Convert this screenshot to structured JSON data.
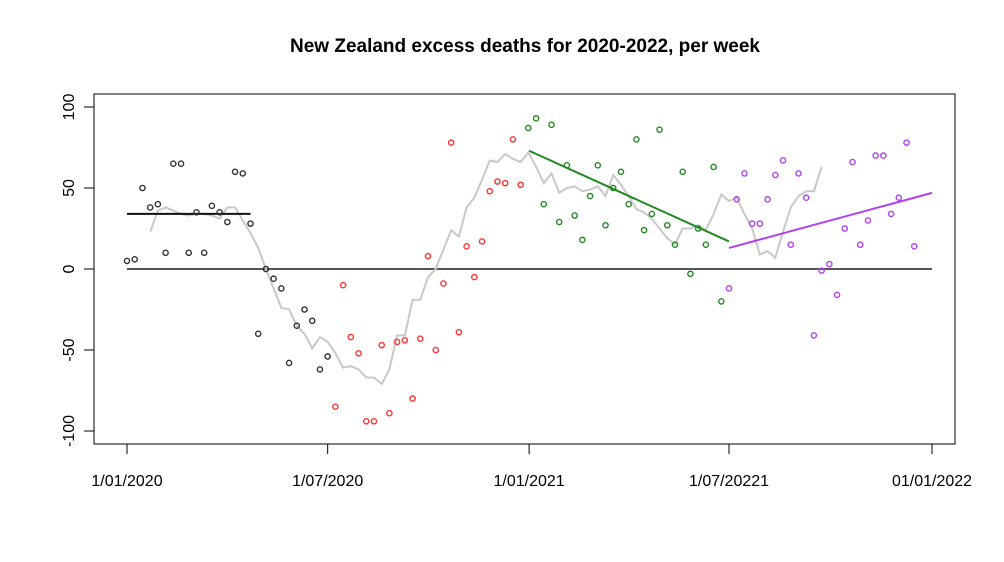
{
  "chart_data": {
    "type": "scatter",
    "title": "New Zealand excess deaths for 2020-2022, per week",
    "xlabel": "",
    "ylabel": "",
    "ylim": [
      -100,
      100
    ],
    "xlim_weeks": [
      0,
      104.3
    ],
    "grid": false,
    "x_ticks": [
      {
        "week": 0,
        "label": "1/01/2020"
      },
      {
        "week": 26,
        "label": "1/07/2020"
      },
      {
        "week": 52.1,
        "label": "1/01/2021"
      },
      {
        "week": 78,
        "label": "1/07/20221"
      },
      {
        "week": 104.3,
        "label": "01/01/2022"
      }
    ],
    "y_ticks": [
      100,
      50,
      0,
      -50,
      -100
    ],
    "zero_line": {
      "y": 0,
      "color": "#555555"
    },
    "series": [
      {
        "name": "period-1",
        "color": "#333333",
        "points": [
          [
            0,
            5
          ],
          [
            1,
            6
          ],
          [
            2,
            50
          ],
          [
            3,
            38
          ],
          [
            4,
            40
          ],
          [
            5,
            10
          ],
          [
            6,
            65
          ],
          [
            7,
            65
          ],
          [
            8,
            10
          ],
          [
            9,
            35
          ],
          [
            10,
            10
          ],
          [
            11,
            39
          ],
          [
            12,
            35
          ],
          [
            13,
            29
          ],
          [
            14,
            60
          ],
          [
            15,
            59
          ],
          [
            16,
            28
          ],
          [
            17,
            -40
          ],
          [
            18,
            0
          ],
          [
            19,
            -6
          ],
          [
            20,
            -12
          ],
          [
            21,
            -58
          ],
          [
            22,
            -35
          ],
          [
            23,
            -25
          ],
          [
            24,
            -32
          ],
          [
            25,
            -62
          ],
          [
            26,
            -54
          ]
        ],
        "trend": {
          "from_week": 0,
          "to_week": 16,
          "y_start": 34,
          "y_end": 34
        }
      },
      {
        "name": "period-2",
        "color": "#ff3333",
        "points": [
          [
            27,
            -85
          ],
          [
            28,
            -10
          ],
          [
            29,
            -42
          ],
          [
            30,
            -52
          ],
          [
            31,
            -94
          ],
          [
            32,
            -94
          ],
          [
            33,
            -47
          ],
          [
            34,
            -89
          ],
          [
            35,
            -45
          ],
          [
            36,
            -44
          ],
          [
            37,
            -80
          ],
          [
            38,
            -43
          ],
          [
            39,
            8
          ],
          [
            40,
            -50
          ],
          [
            41,
            -9
          ],
          [
            42,
            78
          ],
          [
            43,
            -39
          ],
          [
            44,
            14
          ],
          [
            45,
            -5
          ],
          [
            46,
            17
          ],
          [
            47,
            48
          ],
          [
            48,
            54
          ],
          [
            49,
            53
          ],
          [
            50,
            80
          ],
          [
            51,
            52
          ]
        ]
      },
      {
        "name": "period-3",
        "color": "#228822",
        "points": [
          [
            52,
            87
          ],
          [
            53,
            93
          ],
          [
            54,
            40
          ],
          [
            55,
            89
          ],
          [
            56,
            29
          ],
          [
            57,
            64
          ],
          [
            58,
            33
          ],
          [
            59,
            18
          ],
          [
            60,
            45
          ],
          [
            61,
            64
          ],
          [
            62,
            27
          ],
          [
            63,
            50
          ],
          [
            64,
            60
          ],
          [
            65,
            40
          ],
          [
            66,
            80
          ],
          [
            67,
            24
          ],
          [
            68,
            34
          ],
          [
            69,
            86
          ],
          [
            70,
            27
          ],
          [
            71,
            15
          ],
          [
            72,
            60
          ],
          [
            73,
            -3
          ],
          [
            74,
            25
          ],
          [
            75,
            15
          ],
          [
            76,
            63
          ],
          [
            77,
            -20
          ]
        ],
        "trend": {
          "from_week": 52.1,
          "to_week": 78,
          "y_start": 73,
          "y_end": 17
        }
      },
      {
        "name": "period-4",
        "color": "#b040f0",
        "points": [
          [
            78,
            -12
          ],
          [
            79,
            43
          ],
          [
            80,
            59
          ],
          [
            81,
            28
          ],
          [
            82,
            28
          ],
          [
            83,
            43
          ],
          [
            84,
            58
          ],
          [
            85,
            67
          ],
          [
            86,
            15
          ],
          [
            87,
            59
          ],
          [
            88,
            44
          ],
          [
            89,
            -41
          ],
          [
            90,
            -1
          ],
          [
            91,
            3
          ],
          [
            92,
            -16
          ],
          [
            93,
            25
          ],
          [
            94,
            66
          ],
          [
            95,
            15
          ],
          [
            96,
            30
          ],
          [
            97,
            70
          ],
          [
            98,
            70
          ],
          [
            99,
            34
          ],
          [
            100,
            44
          ],
          [
            101,
            78
          ],
          [
            102,
            14
          ]
        ],
        "trend": {
          "from_week": 78,
          "to_week": 104.3,
          "y_start": 13,
          "y_end": 47
        }
      }
    ],
    "smoothed": {
      "name": "rolling-average",
      "color": "#c8c8c8",
      "points": [
        [
          3,
          23
        ],
        [
          4,
          36
        ],
        [
          5,
          38
        ],
        [
          6,
          36
        ],
        [
          7,
          34
        ],
        [
          8,
          33
        ],
        [
          9,
          34
        ],
        [
          10,
          34
        ],
        [
          11,
          33
        ],
        [
          12,
          31
        ],
        [
          13,
          38
        ],
        [
          14,
          38
        ],
        [
          15,
          30
        ],
        [
          16,
          22
        ],
        [
          17,
          13
        ],
        [
          18,
          0
        ],
        [
          19,
          -12
        ],
        [
          20,
          -24
        ],
        [
          21,
          -25
        ],
        [
          22,
          -35
        ],
        [
          23,
          -40
        ],
        [
          24,
          -49
        ],
        [
          25,
          -42
        ],
        [
          26,
          -45
        ],
        [
          27,
          -52
        ],
        [
          28,
          -61
        ],
        [
          29,
          -60
        ],
        [
          30,
          -62
        ],
        [
          31,
          -67
        ],
        [
          32,
          -67
        ],
        [
          33,
          -71
        ],
        [
          34,
          -62
        ],
        [
          35,
          -41
        ],
        [
          36,
          -41
        ],
        [
          37,
          -19
        ],
        [
          38,
          -19
        ],
        [
          39,
          -5
        ],
        [
          40,
          0
        ],
        [
          41,
          12
        ],
        [
          42,
          24
        ],
        [
          43,
          20
        ],
        [
          44,
          38
        ],
        [
          45,
          44
        ],
        [
          46,
          55
        ],
        [
          47,
          67
        ],
        [
          48,
          66
        ],
        [
          49,
          71
        ],
        [
          50,
          68
        ],
        [
          51,
          66
        ],
        [
          52,
          72
        ],
        [
          53,
          63
        ],
        [
          54,
          53
        ],
        [
          55,
          59
        ],
        [
          56,
          47
        ],
        [
          57,
          50
        ],
        [
          58,
          51
        ],
        [
          59,
          48
        ],
        [
          60,
          49
        ],
        [
          61,
          51
        ],
        [
          62,
          45
        ],
        [
          63,
          58
        ],
        [
          64,
          52
        ],
        [
          65,
          45
        ],
        [
          66,
          37
        ],
        [
          67,
          35
        ],
        [
          68,
          31
        ],
        [
          69,
          25
        ],
        [
          70,
          19
        ],
        [
          71,
          15
        ],
        [
          72,
          25
        ],
        [
          73,
          25
        ],
        [
          74,
          27
        ],
        [
          75,
          24
        ],
        [
          76,
          34
        ],
        [
          77,
          46
        ],
        [
          78,
          42
        ],
        [
          79,
          44
        ],
        [
          80,
          34
        ],
        [
          81,
          25
        ],
        [
          82,
          9
        ],
        [
          83,
          11
        ],
        [
          84,
          7
        ],
        [
          85,
          23
        ],
        [
          86,
          38
        ],
        [
          87,
          45
        ],
        [
          88,
          48
        ],
        [
          89,
          48
        ],
        [
          90,
          63
        ]
      ]
    }
  }
}
